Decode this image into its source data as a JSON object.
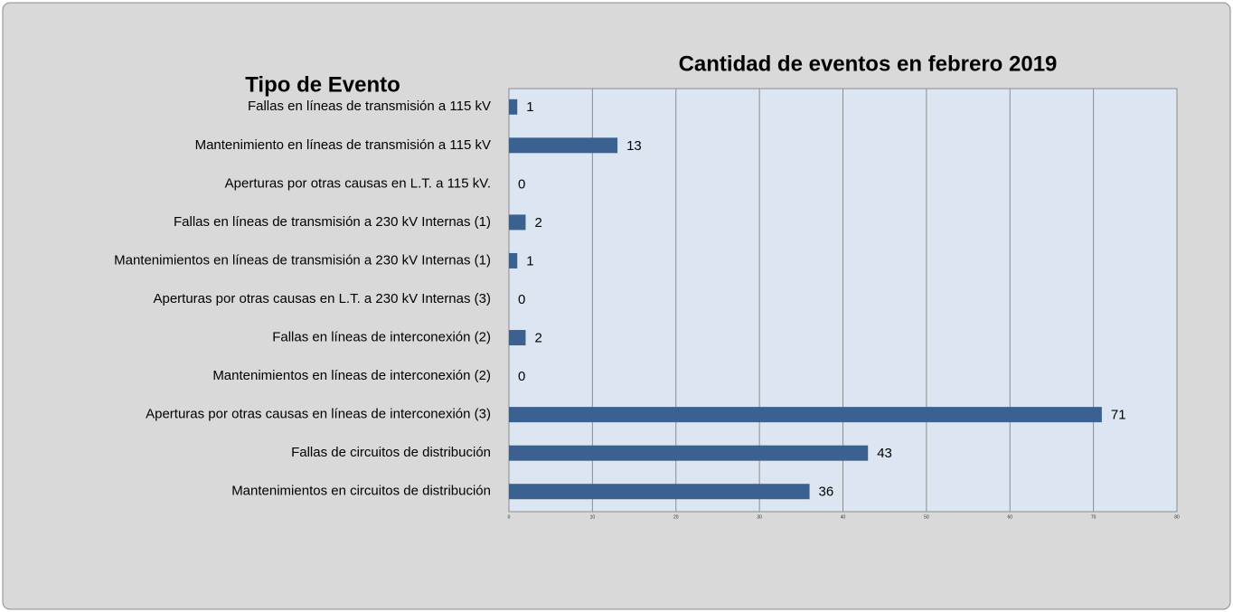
{
  "chart_data": {
    "type": "bar",
    "orientation": "horizontal",
    "title": "Cantidad de eventos en febrero 2019",
    "y_label": "Tipo de Evento",
    "categories": [
      "Fallas en líneas de transmisión a 115 kV",
      "Mantenimiento en líneas de transmisión a 115 kV",
      "Aperturas por otras causas en L.T. a 115 kV.",
      "Fallas en líneas de transmisión a 230 kV Internas (1)",
      "Mantenimientos en líneas de transmisión a 230 kV Internas (1)",
      "Aperturas por otras causas en L.T. a 230 kV Internas (3)",
      "Fallas en líneas de interconexión (2)",
      "Mantenimientos en líneas de interconexión (2)",
      "Aperturas por otras causas en líneas de interconexión (3)",
      "Fallas de circuitos de distribución",
      "Mantenimientos en circuitos de distribución"
    ],
    "values": [
      1,
      13,
      0,
      2,
      1,
      0,
      2,
      0,
      71,
      43,
      36
    ],
    "color": "#3a6190",
    "xlim": [
      0,
      80
    ],
    "xticks": [
      0,
      10,
      20,
      30,
      40,
      50,
      60,
      70,
      80
    ],
    "grid": true
  }
}
